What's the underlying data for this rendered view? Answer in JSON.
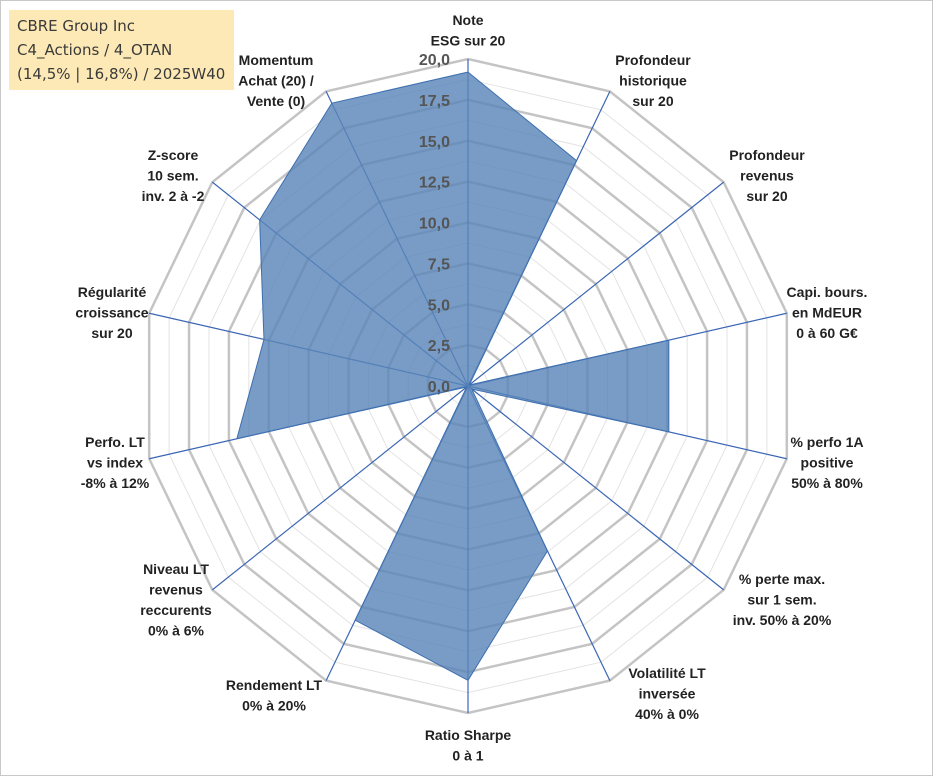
{
  "info_box": {
    "line1": "CBRE Group Inc",
    "line2": "C4_Actions / 4_OTAN",
    "line3": "(14,5% | 16,8%) / 2025W40"
  },
  "chart_data": {
    "type": "radar",
    "title": "",
    "rmax": 20,
    "ticks": [
      "0,0",
      "2,5",
      "5,0",
      "7,5",
      "10,0",
      "12,5",
      "15,0",
      "17,5",
      "20,0"
    ],
    "tick_values": [
      0,
      2.5,
      5,
      7.5,
      10,
      12.5,
      15,
      17.5,
      20
    ],
    "grid_values": [
      2.5,
      5,
      7.5,
      10,
      12.5,
      15,
      17.5,
      20
    ],
    "axes": [
      {
        "label": [
          "Note",
          "ESG sur 20"
        ],
        "value": 19.2
      },
      {
        "label": [
          "Profondeur",
          "historique",
          "sur 20"
        ],
        "value": 15.3
      },
      {
        "label": [
          "Profondeur",
          "revenus",
          "sur 20"
        ],
        "value": 0.1
      },
      {
        "label": [
          "Capi. bours.",
          "en MdEUR",
          "0 à 60 G€"
        ],
        "value": 12.6
      },
      {
        "label": [
          "% perfo 1A",
          "positive",
          "50% à 80%"
        ],
        "value": 12.6
      },
      {
        "label": [
          "% perte max.",
          "sur 1 sem.",
          "inv. 50% à 20%"
        ],
        "value": 0.3
      },
      {
        "label": [
          "Volatilité LT",
          "inversée",
          "40% à 0%"
        ],
        "value": 11.2
      },
      {
        "label": [
          "Ratio Sharpe",
          "0 à 1"
        ],
        "value": 18.0
      },
      {
        "label": [
          "Rendement LT",
          "0% à 20%"
        ],
        "value": 15.9
      },
      {
        "label": [
          "Niveau LT",
          "revenus",
          "reccurents",
          "0% à 6%"
        ],
        "value": 0.1
      },
      {
        "label": [
          "Perfo. LT",
          "vs index",
          "-8% à 12%"
        ],
        "value": 14.5
      },
      {
        "label": [
          "Régularité",
          "croissance",
          "sur 20"
        ],
        "value": 12.8
      },
      {
        "label": [
          "Z-score",
          "10 sem.",
          "inv. 2 à -2"
        ],
        "value": 16.3
      },
      {
        "label": [
          "Momentum",
          "Achat (20) /",
          "Vente (0)"
        ],
        "value": 19.2
      }
    ],
    "colors": {
      "fill": "#5a86b8",
      "stroke": "#3e6fb0",
      "spoke": "#3b66b5",
      "grid": "#c4c4c4",
      "minor_grid": "#e3e3e3"
    },
    "grid": true,
    "legend": "none"
  }
}
